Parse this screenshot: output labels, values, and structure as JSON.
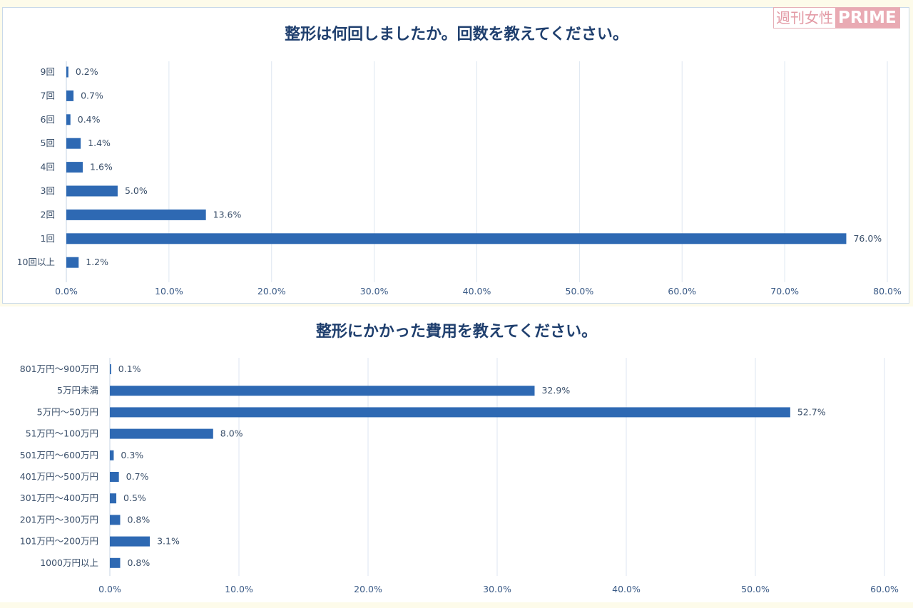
{
  "brand": {
    "logo_jp": "週刊女性",
    "logo_en": "PRIME",
    "color": "#e9aab3"
  },
  "bar_color": "#2e69b3",
  "chart_data": [
    {
      "type": "bar",
      "orientation": "horizontal",
      "title": "整形は何回しましたか。回数を教えてください。",
      "categories": [
        "9回",
        "7回",
        "6回",
        "5回",
        "4回",
        "3回",
        "2回",
        "1回",
        "10回以上"
      ],
      "values": [
        0.2,
        0.7,
        0.4,
        1.4,
        1.6,
        5.0,
        13.6,
        76.0,
        1.2
      ],
      "value_labels": [
        "0.2%",
        "0.7%",
        "0.4%",
        "1.4%",
        "1.6%",
        "5.0%",
        "13.6%",
        "76.0%",
        "1.2%"
      ],
      "xlim": [
        0,
        80
      ],
      "xticks": [
        "0.0%",
        "10.0%",
        "20.0%",
        "30.0%",
        "40.0%",
        "50.0%",
        "60.0%",
        "70.0%",
        "80.0%"
      ],
      "grid": true,
      "legend": "none"
    },
    {
      "type": "bar",
      "orientation": "horizontal",
      "title": "整形にかかった費用を教えてください。",
      "categories": [
        "801万円～900万円",
        "5万円未満",
        "5万円～50万円",
        "51万円～100万円",
        "501万円～600万円",
        "401万円～500万円",
        "301万円～400万円",
        "201万円～300万円",
        "101万円～200万円",
        "1000万円以上"
      ],
      "values": [
        0.1,
        32.9,
        52.7,
        8.0,
        0.3,
        0.7,
        0.5,
        0.8,
        3.1,
        0.8
      ],
      "value_labels": [
        "0.1%",
        "32.9%",
        "52.7%",
        "8.0%",
        "0.3%",
        "0.7%",
        "0.5%",
        "0.8%",
        "3.1%",
        "0.8%"
      ],
      "xlim": [
        0,
        60
      ],
      "xticks": [
        "0.0%",
        "10.0%",
        "20.0%",
        "30.0%",
        "40.0%",
        "50.0%",
        "60.0%"
      ],
      "grid": true,
      "legend": "none"
    }
  ]
}
